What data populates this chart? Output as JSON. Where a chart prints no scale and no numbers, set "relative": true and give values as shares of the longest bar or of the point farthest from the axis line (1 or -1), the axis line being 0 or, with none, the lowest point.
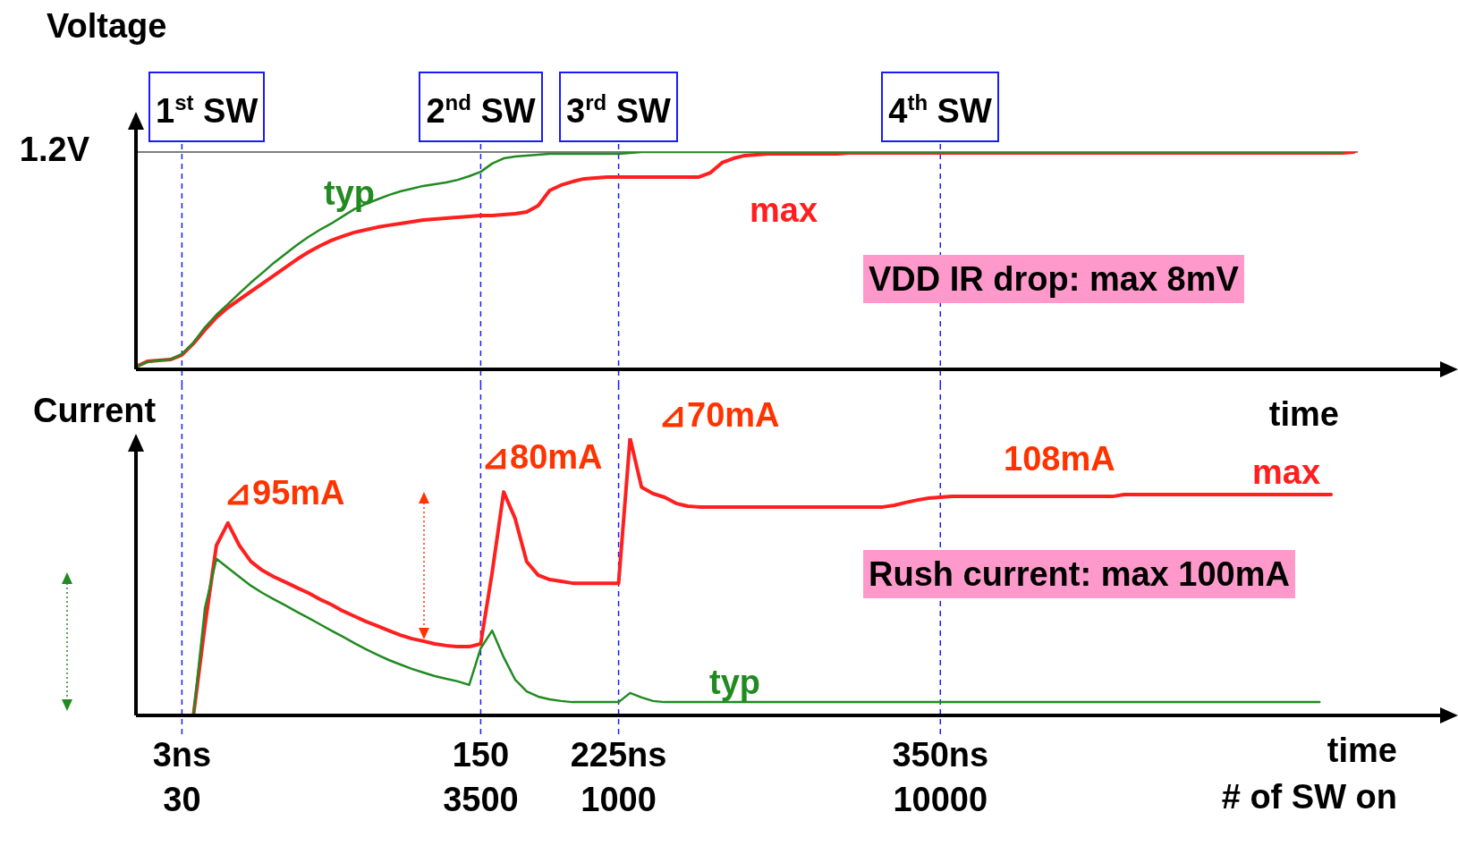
{
  "chart_data": [
    {
      "type": "line",
      "relative": true,
      "ylabel": "Voltage",
      "xlabel": "time",
      "tick_labels": false,
      "marker": "none",
      "line_style": "solid",
      "categories": [
        null,
        null,
        null,
        null,
        "3ns\n30",
        null,
        null,
        null,
        null,
        null,
        null,
        null,
        null,
        null,
        null,
        null,
        null,
        null,
        null,
        null,
        null,
        null,
        null,
        null,
        null,
        null,
        null,
        null,
        null,
        null,
        "150\n3500",
        null,
        null,
        null,
        null,
        null,
        null,
        null,
        null,
        null,
        null,
        null,
        "225ns\n1000",
        null,
        null,
        null,
        null,
        null,
        null,
        null,
        null,
        null,
        null,
        null,
        null,
        null,
        null,
        null,
        null,
        null,
        null,
        null,
        null,
        null,
        null,
        null,
        null,
        null,
        null,
        null,
        "350ns\n10000",
        null,
        null,
        null,
        null,
        null,
        null,
        null,
        null,
        null,
        null,
        null,
        null,
        null,
        null,
        null,
        null,
        null,
        null,
        null,
        null,
        null,
        null,
        null,
        null,
        null,
        null,
        null,
        null,
        null,
        null,
        null,
        null,
        null,
        null,
        null,
        null,
        null,
        null,
        null,
        null,
        null
      ],
      "series": [
        {
          "name": "typ",
          "color": "#218a21",
          "values": [
            0.012,
            0.033,
            0.041,
            0.045,
            0.07,
            0.123,
            0.193,
            0.251,
            0.3,
            0.35,
            0.399,
            0.444,
            0.49,
            0.531,
            0.572,
            0.609,
            0.642,
            0.671,
            0.704,
            0.737,
            0.761,
            0.782,
            0.802,
            0.819,
            0.831,
            0.844,
            0.852,
            0.86,
            0.872,
            0.889,
            0.909,
            0.947,
            0.971,
            0.979,
            0.984,
            0.988,
            0.992,
            0.992,
            0.992,
            0.992,
            0.992,
            0.992,
            0.992,
            0.996,
            1,
            1,
            1,
            1,
            1,
            1,
            1,
            1,
            1,
            1,
            1,
            1,
            1,
            1,
            1,
            1,
            1,
            1,
            1,
            1,
            1,
            1,
            1,
            1,
            1,
            1,
            1,
            1,
            1,
            1,
            1,
            1,
            1,
            1,
            1,
            1,
            1,
            1,
            1,
            1,
            1,
            1,
            1,
            1,
            1,
            1,
            1,
            1,
            1,
            1,
            1,
            1,
            1,
            1,
            1,
            1,
            1,
            1,
            1,
            1,
            1,
            1,
            null,
            null,
            null,
            null,
            null,
            null
          ]
        },
        {
          "name": "max",
          "color": "#ff1f1f",
          "values": [
            0.012,
            0.037,
            0.041,
            0.045,
            0.066,
            0.119,
            0.181,
            0.239,
            0.284,
            0.321,
            0.358,
            0.395,
            0.432,
            0.469,
            0.506,
            0.539,
            0.568,
            0.593,
            0.613,
            0.63,
            0.642,
            0.654,
            0.663,
            0.671,
            0.679,
            0.687,
            0.691,
            0.695,
            0.7,
            0.704,
            0.708,
            0.708,
            0.712,
            0.716,
            0.724,
            0.753,
            0.823,
            0.848,
            0.864,
            0.877,
            0.881,
            0.885,
            0.885,
            0.885,
            0.885,
            0.885,
            0.885,
            0.885,
            0.885,
            0.885,
            0.905,
            0.951,
            0.971,
            0.984,
            0.988,
            0.992,
            0.992,
            0.992,
            0.992,
            0.992,
            0.992,
            0.992,
            0.996,
            0.996,
            0.996,
            0.996,
            0.996,
            0.996,
            0.996,
            0.996,
            0.996,
            0.996,
            0.996,
            0.996,
            0.996,
            0.996,
            0.996,
            0.996,
            0.996,
            0.996,
            0.996,
            0.996,
            0.996,
            0.996,
            0.996,
            0.996,
            0.996,
            0.996,
            0.996,
            0.996,
            0.996,
            0.996,
            0.996,
            0.996,
            0.996,
            0.996,
            0.996,
            0.996,
            0.996,
            0.996,
            0.996,
            0.996,
            0.996,
            0.996,
            0.996,
            0.996,
            1,
            null,
            null,
            null,
            null,
            null
          ]
        }
      ],
      "ref_lines": [
        {
          "axis": "y",
          "value": 1,
          "label": "1.2V",
          "color": "#000000",
          "line_style": "solid"
        },
        {
          "axis": "x",
          "value": "3ns\n30",
          "label": "1$^{st}$ SW",
          "color": "#1a1aff",
          "line_style": "dashed"
        },
        {
          "axis": "x",
          "value": "150\n3500",
          "label": "2$^{nd}$ SW",
          "color": "#1a1aff",
          "line_style": "dashed"
        },
        {
          "axis": "x",
          "value": "225ns\n1000",
          "label": "3$^{rd}$ SW",
          "color": "#1a1aff",
          "line_style": "dashed"
        },
        {
          "axis": "x",
          "value": "350ns\n10000",
          "label": "4$^{th}$ SW",
          "color": "#1a1aff",
          "line_style": "dashed"
        }
      ],
      "annotations": [
        "VDD IR drop: max 8mV"
      ]
    },
    {
      "type": "line",
      "relative": true,
      "ylabel": "Current",
      "xlabel": "time\n# of SW on",
      "marker": "none",
      "line_style": "solid",
      "tick_labels": "x",
      "categories": [
        null,
        null,
        null,
        null,
        "3ns\n30",
        null,
        null,
        null,
        null,
        null,
        null,
        null,
        null,
        null,
        null,
        null,
        null,
        null,
        null,
        null,
        null,
        null,
        null,
        null,
        null,
        null,
        null,
        null,
        null,
        null,
        "150\n3500",
        null,
        null,
        null,
        null,
        null,
        null,
        null,
        null,
        null,
        null,
        null,
        "225ns\n1000",
        null,
        null,
        null,
        null,
        null,
        null,
        null,
        null,
        null,
        null,
        null,
        null,
        null,
        null,
        null,
        null,
        null,
        null,
        null,
        null,
        null,
        null,
        null,
        null,
        null,
        null,
        null,
        "350ns\n10000",
        null,
        null,
        null,
        null,
        null,
        null,
        null,
        null,
        null,
        null,
        null,
        null,
        null,
        null,
        null,
        null,
        null,
        null,
        null,
        null,
        null,
        null,
        null,
        null,
        null,
        null,
        null,
        null,
        null,
        null,
        null,
        null,
        null,
        null,
        null,
        null,
        null,
        null,
        null,
        null,
        null
      ],
      "series": [
        {
          "name": "typ",
          "color": "#218a21",
          "values": [
            null,
            null,
            null,
            null,
            null,
            0,
            0.387,
            0.565,
            0.532,
            0.5,
            0.468,
            0.442,
            0.419,
            0.397,
            0.374,
            0.352,
            0.329,
            0.306,
            0.284,
            0.261,
            0.239,
            0.219,
            0.2,
            0.184,
            0.168,
            0.155,
            0.142,
            0.132,
            0.123,
            0.11,
            0.242,
            0.306,
            0.21,
            0.129,
            0.087,
            0.068,
            0.058,
            0.052,
            0.048,
            0.048,
            0.048,
            0.048,
            0.048,
            0.081,
            0.065,
            0.052,
            0.048,
            0.048,
            0.048,
            0.048,
            0.048,
            0.048,
            0.048,
            0.048,
            0.048,
            0.048,
            0.048,
            0.048,
            0.048,
            0.048,
            0.048,
            0.048,
            0.048,
            0.048,
            0.048,
            0.048,
            0.048,
            0.048,
            0.048,
            0.048,
            0.048,
            0.048,
            0.048,
            0.048,
            0.048,
            0.048,
            0.048,
            0.048,
            0.048,
            0.048,
            0.048,
            0.048,
            0.048,
            0.048,
            0.048,
            0.048,
            0.048,
            0.048,
            0.048,
            0.048,
            0.048,
            0.048,
            0.048,
            0.048,
            0.048,
            0.048,
            0.048,
            0.048,
            0.048,
            0.048,
            0.048,
            0.048,
            0.048,
            0.048,
            null,
            null,
            null,
            null,
            null,
            null,
            null,
            null
          ]
        },
        {
          "name": "max",
          "color": "#ff1f1f",
          "values": [
            null,
            null,
            null,
            null,
            0,
            0,
            0.323,
            0.613,
            0.694,
            0.613,
            0.555,
            0.523,
            0.5,
            0.481,
            0.461,
            0.442,
            0.419,
            0.4,
            0.377,
            0.358,
            0.339,
            0.323,
            0.306,
            0.29,
            0.277,
            0.268,
            0.258,
            0.252,
            0.248,
            0.248,
            0.258,
            0.516,
            0.806,
            0.71,
            0.555,
            0.506,
            0.49,
            0.484,
            0.477,
            0.477,
            0.477,
            0.477,
            0.477,
            1,
            0.823,
            0.8,
            0.787,
            0.765,
            0.755,
            0.752,
            0.752,
            0.752,
            0.752,
            0.752,
            0.752,
            0.752,
            0.752,
            0.752,
            0.752,
            0.752,
            0.752,
            0.752,
            0.752,
            0.752,
            0.752,
            0.752,
            0.758,
            0.768,
            0.777,
            0.784,
            0.787,
            0.79,
            0.79,
            0.79,
            0.79,
            0.79,
            0.79,
            0.79,
            0.79,
            0.79,
            0.79,
            0.79,
            0.79,
            0.79,
            0.79,
            0.79,
            0.797,
            0.797,
            0.797,
            0.797,
            0.797,
            0.797,
            0.797,
            0.797,
            0.797,
            0.797,
            0.797,
            0.797,
            0.797,
            0.797,
            0.797,
            0.797,
            0.797,
            0.797,
            0.797,
            null,
            null,
            null,
            null,
            null,
            null,
            null
          ]
        }
      ],
      "ref_lines": [
        {
          "axis": "x",
          "value": "3ns\n30",
          "color": "#1a1aff",
          "line_style": "dashed"
        },
        {
          "axis": "x",
          "value": "150\n3500",
          "color": "#1a1aff",
          "line_style": "dashed"
        },
        {
          "axis": "x",
          "value": "225ns\n1000",
          "color": "#1a1aff",
          "line_style": "dashed"
        },
        {
          "axis": "x",
          "value": "350ns\n10000",
          "color": "#1a1aff",
          "line_style": "dashed"
        }
      ],
      "annotations": [
        "⊿95mA",
        "⊿80mA",
        "⊿70mA",
        "108mA",
        "Rush current: max 100mA"
      ]
    }
  ]
}
